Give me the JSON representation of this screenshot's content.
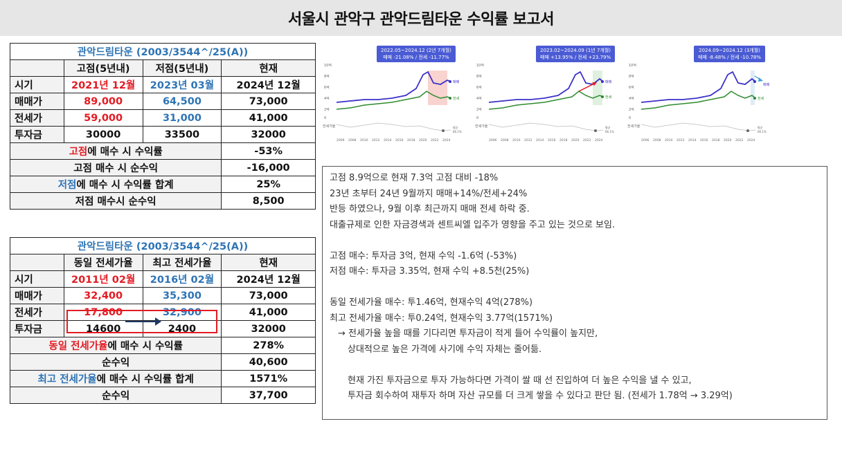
{
  "page_title": "서울시 관악구 관악드림타운 수익률 보고서",
  "table1": {
    "title": "관악드림타운 (2003/3544^/25(A))",
    "headers": [
      "고점(5년내)",
      "저점(5년내)",
      "현재"
    ],
    "rows": [
      {
        "label": "시기",
        "values": [
          "2021년 12월",
          "2023년 03월",
          "2024년 12월"
        ]
      },
      {
        "label": "매매가",
        "values": [
          "89,000",
          "64,500",
          "73,000"
        ]
      },
      {
        "label": "전세가",
        "values": [
          "59,000",
          "31,000",
          "41,000"
        ]
      },
      {
        "label": "투자금",
        "values": [
          "30000",
          "33500",
          "32000"
        ]
      }
    ],
    "summary": [
      {
        "label_pre": "",
        "label_hl": "고점",
        "label_post": "에 매수 시 수익률",
        "hl_color": "red",
        "value": "-53%"
      },
      {
        "label_pre": "고점 매수 시 순수익",
        "label_hl": "",
        "label_post": "",
        "hl_color": "",
        "value": "-16,000"
      },
      {
        "label_pre": "",
        "label_hl": "저점",
        "label_post": "에 매수 시 수익률 합계",
        "hl_color": "blue",
        "value": "25%"
      },
      {
        "label_pre": "저점 매수시 순수익",
        "label_hl": "",
        "label_post": "",
        "hl_color": "",
        "value": "8,500"
      }
    ]
  },
  "table2": {
    "title": "관악드림타운 (2003/3544^/25(A))",
    "headers": [
      "동일 전세가율",
      "최고 전세가율",
      "현재"
    ],
    "rows": [
      {
        "label": "시기",
        "values": [
          "2011년 02월",
          "2016년 02월",
          "2024년 12월"
        ]
      },
      {
        "label": "매매가",
        "values": [
          "32,400",
          "35,300",
          "73,000"
        ]
      },
      {
        "label": "전세가",
        "values": [
          "17,800",
          "32,900",
          "41,000"
        ]
      },
      {
        "label": "투자금",
        "values": [
          "14600",
          "2400",
          "32000"
        ]
      }
    ],
    "summary": [
      {
        "label_pre": "",
        "label_hl": "동일 전세가율",
        "label_post": "에 매수 시 수익률",
        "hl_color": "red",
        "value": "278%"
      },
      {
        "label_pre": "순수익",
        "label_hl": "",
        "label_post": "",
        "hl_color": "",
        "value": "40,600"
      },
      {
        "label_pre": "",
        "label_hl": "최고 전세가율",
        "label_post": "에 매수 시 수익률 합계",
        "hl_color": "blue",
        "value": "1571%"
      },
      {
        "label_pre": "순수익",
        "label_hl": "",
        "label_post": "",
        "hl_color": "",
        "value": "37,700"
      }
    ]
  },
  "charts": [
    {
      "tooltip_line1": "2022.05~2024.12 (2년 7개월)",
      "tooltip_line2": "매매 -21.08% / 전세 -11.77%",
      "label_sale": "매매",
      "label_jeonse": "전세",
      "label_ratio": "전세가율",
      "label_avg": "평균",
      "label_avg_val": "66.1%"
    },
    {
      "tooltip_line1": "2023.02~2024.09 (1년 7개월)",
      "tooltip_line2": "매매 +13.95% / 전세 +23.79%",
      "label_sale": "매매",
      "label_jeonse": "전세",
      "label_ratio": "전세가율",
      "label_avg": "평균",
      "label_avg_val": "66.1%"
    },
    {
      "tooltip_line1": "2024.09~2024.12 (3개월)",
      "tooltip_line2": "매매 -8.48% / 전세 -10.78%",
      "label_sale": "매매",
      "label_jeonse": "전세",
      "label_ratio": "전세가율",
      "label_avg": "평균",
      "label_avg_val": "66.1%"
    }
  ],
  "chart_axis": {
    "y_ticks": [
      "10억",
      "8억",
      "6억",
      "4억",
      "2억",
      "0"
    ],
    "x_ticks": [
      "2006",
      "2008",
      "2010",
      "2012",
      "2014",
      "2016",
      "2018",
      "2020",
      "2022",
      "2024"
    ]
  },
  "notes": {
    "l1": "고점 8.9억으로 현재 7.3억 고점 대비 -18%",
    "l2": "23년 초부터 24년 9월까지 매매+14%/전세+24%",
    "l3": "반등 하였으나, 9월 이후 최근까지 매매 전세 하락 중.",
    "l4": "대출규제로 인한 자금경색과 센트씨엘 입주가 영향을 주고 있는 것으로 보임.",
    "l5": "고점 매수: 투자금 3억, 현재 수익 -1.6억 (-53%)",
    "l6": "저점 매수: 투자금 3.35억, 현재 수익 +8.5천(25%)",
    "l7": "동일 전세가율 매수: 투1.46억, 현재수익 4억(278%)",
    "l8": "최고 전세가율 매수: 투0.24억, 현재수익 3.77억(1571%)",
    "l9": "→ 전세가율 높을 때를 기다리면 투자금이 적게 들어 수익률이 높지만,",
    "l10": "상대적으로 높은 가격에 사기에 수익 자체는 줄어듦.",
    "l11": "현재 가진 투자금으로 투자 가능하다면 가격이 쌀 때 선 진입하여 더 높은 수익을 낼 수 있고,",
    "l12": "투자금 회수하여 재투자 하며 자산 규모를 더 크게 쌓을 수 있다고 판단 됨. (전세가 1.78억 → 3.29억)"
  },
  "colors": {
    "red": "#e31b23",
    "blue": "#2e74b5",
    "sale_line": "#3b2fc9",
    "jeonse_line": "#2e8b2e",
    "tooltip": "#4a5bd4"
  }
}
